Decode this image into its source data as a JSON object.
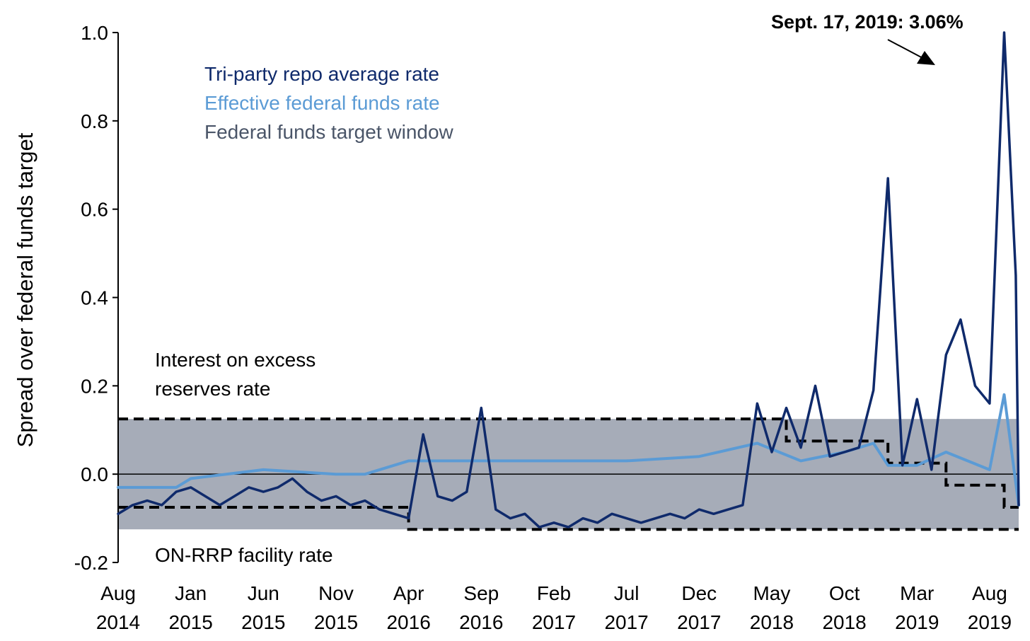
{
  "chart_data": {
    "type": "line",
    "ylabel": "Spread over federal funds target",
    "ylim": [
      -0.2,
      1.0
    ],
    "yticks": [
      {
        "value": -0.2,
        "label": "-0.2"
      },
      {
        "value": 0.0,
        "label": "0.0"
      },
      {
        "value": 0.2,
        "label": "0.2"
      },
      {
        "value": 0.4,
        "label": "0.4"
      },
      {
        "value": 0.6,
        "label": "0.6"
      },
      {
        "value": 0.8,
        "label": "0.8"
      },
      {
        "value": 1.0,
        "label": "1.0"
      }
    ],
    "xlim": [
      "2014-08",
      "2019-10"
    ],
    "xticks": [
      {
        "date": "2014-08",
        "month": "Aug",
        "year": "2014"
      },
      {
        "date": "2015-01",
        "month": "Jan",
        "year": "2015"
      },
      {
        "date": "2015-06",
        "month": "Jun",
        "year": "2015"
      },
      {
        "date": "2015-11",
        "month": "Nov",
        "year": "2015"
      },
      {
        "date": "2016-04",
        "month": "Apr",
        "year": "2016"
      },
      {
        "date": "2016-09",
        "month": "Sep",
        "year": "2016"
      },
      {
        "date": "2017-02",
        "month": "Feb",
        "year": "2017"
      },
      {
        "date": "2017-07",
        "month": "Jul",
        "year": "2017"
      },
      {
        "date": "2017-12",
        "month": "Dec",
        "year": "2017"
      },
      {
        "date": "2018-05",
        "month": "May",
        "year": "2018"
      },
      {
        "date": "2018-10",
        "month": "Oct",
        "year": "2018"
      },
      {
        "date": "2019-03",
        "month": "Mar",
        "year": "2019"
      },
      {
        "date": "2019-08",
        "month": "Aug",
        "year": "2019"
      }
    ],
    "target_window": {
      "label": "Federal funds target window",
      "color": "#a6acb8",
      "lower": -0.125,
      "upper": 0.125,
      "x": [
        "2014-08",
        "2019-10"
      ]
    },
    "series": [
      {
        "name": "Tri-party repo average rate",
        "color": "#0f2a6b",
        "points": [
          [
            "2014-08",
            -0.09
          ],
          [
            "2014-09",
            -0.07
          ],
          [
            "2014-10",
            -0.06
          ],
          [
            "2014-11",
            -0.07
          ],
          [
            "2014-12",
            -0.04
          ],
          [
            "2015-01",
            -0.03
          ],
          [
            "2015-02",
            -0.05
          ],
          [
            "2015-03",
            -0.07
          ],
          [
            "2015-04",
            -0.05
          ],
          [
            "2015-05",
            -0.03
          ],
          [
            "2015-06",
            -0.04
          ],
          [
            "2015-07",
            -0.03
          ],
          [
            "2015-08",
            -0.01
          ],
          [
            "2015-09",
            -0.04
          ],
          [
            "2015-10",
            -0.06
          ],
          [
            "2015-11",
            -0.05
          ],
          [
            "2015-12",
            -0.07
          ],
          [
            "2016-01",
            -0.06
          ],
          [
            "2016-02",
            -0.08
          ],
          [
            "2016-03",
            -0.09
          ],
          [
            "2016-04",
            -0.1
          ],
          [
            "2016-05",
            0.09
          ],
          [
            "2016-06",
            -0.05
          ],
          [
            "2016-07",
            -0.06
          ],
          [
            "2016-08",
            -0.04
          ],
          [
            "2016-09",
            0.15
          ],
          [
            "2016-10",
            -0.08
          ],
          [
            "2016-11",
            -0.1
          ],
          [
            "2016-12",
            -0.09
          ],
          [
            "2017-01",
            -0.12
          ],
          [
            "2017-02",
            -0.11
          ],
          [
            "2017-03",
            -0.12
          ],
          [
            "2017-04",
            -0.1
          ],
          [
            "2017-05",
            -0.11
          ],
          [
            "2017-06",
            -0.09
          ],
          [
            "2017-07",
            -0.1
          ],
          [
            "2017-08",
            -0.11
          ],
          [
            "2017-09",
            -0.1
          ],
          [
            "2017-10",
            -0.09
          ],
          [
            "2017-11",
            -0.1
          ],
          [
            "2017-12",
            -0.08
          ],
          [
            "2018-01",
            -0.09
          ],
          [
            "2018-02",
            -0.08
          ],
          [
            "2018-03",
            -0.07
          ],
          [
            "2018-04",
            0.16
          ],
          [
            "2018-05",
            0.05
          ],
          [
            "2018-06",
            0.15
          ],
          [
            "2018-07",
            0.06
          ],
          [
            "2018-08",
            0.2
          ],
          [
            "2018-09",
            0.04
          ],
          [
            "2018-10",
            0.05
          ],
          [
            "2018-11",
            0.06
          ],
          [
            "2018-12",
            0.19
          ],
          [
            "2019-01",
            0.67
          ],
          [
            "2019-02",
            0.02
          ],
          [
            "2019-03",
            0.17
          ],
          [
            "2019-04",
            0.01
          ],
          [
            "2019-05",
            0.27
          ],
          [
            "2019-06",
            0.35
          ],
          [
            "2019-07",
            0.2
          ],
          [
            "2019-08",
            0.16
          ],
          [
            "2019-09",
            1.0
          ],
          [
            "2019-09-25",
            0.45
          ],
          [
            "2019-10",
            -0.07
          ]
        ]
      },
      {
        "name": "Effective federal funds rate",
        "color": "#5b9bd5",
        "points": [
          [
            "2014-08",
            -0.03
          ],
          [
            "2014-12",
            -0.03
          ],
          [
            "2015-01",
            -0.01
          ],
          [
            "2015-06",
            0.01
          ],
          [
            "2015-11",
            0.0
          ],
          [
            "2016-01",
            0.0
          ],
          [
            "2016-04",
            0.03
          ],
          [
            "2016-09",
            0.03
          ],
          [
            "2017-02",
            0.03
          ],
          [
            "2017-07",
            0.03
          ],
          [
            "2017-12",
            0.04
          ],
          [
            "2018-04",
            0.07
          ],
          [
            "2018-07",
            0.03
          ],
          [
            "2018-10",
            0.05
          ],
          [
            "2018-12",
            0.07
          ],
          [
            "2019-01",
            0.02
          ],
          [
            "2019-03",
            0.02
          ],
          [
            "2019-05",
            0.05
          ],
          [
            "2019-08",
            0.01
          ],
          [
            "2019-09",
            0.18
          ],
          [
            "2019-10",
            -0.07
          ]
        ]
      }
    ],
    "reference_lines": [
      {
        "name": "Interest on excess reserves rate",
        "style": "dashed",
        "steps": [
          [
            "2014-08",
            0.125
          ],
          [
            "2018-06",
            0.125
          ],
          [
            "2018-06",
            0.075
          ],
          [
            "2019-01",
            0.075
          ],
          [
            "2019-01",
            0.025
          ],
          [
            "2019-05",
            0.025
          ],
          [
            "2019-05",
            -0.025
          ],
          [
            "2019-09",
            -0.025
          ],
          [
            "2019-09",
            -0.075
          ],
          [
            "2019-10",
            -0.075
          ]
        ]
      },
      {
        "name": "ON-RRP facility rate",
        "style": "dashed",
        "steps": [
          [
            "2014-08",
            -0.075
          ],
          [
            "2016-04",
            -0.075
          ],
          [
            "2016-04",
            -0.125
          ],
          [
            "2019-10",
            -0.125
          ]
        ]
      }
    ],
    "annotations": {
      "callout": "Sept. 17, 2019: 3.06%",
      "ioer": [
        "Interest on excess",
        "reserves rate"
      ],
      "onrrp": "ON-RRP facility rate"
    },
    "legend": {
      "position": "top-left",
      "items": [
        {
          "label": "Tri-party repo average rate",
          "color": "#0f2a6b"
        },
        {
          "label": "Effective federal funds rate",
          "color": "#5b9bd5"
        },
        {
          "label": "Federal funds target window",
          "color": "#4a5568"
        }
      ]
    },
    "grid": false
  }
}
